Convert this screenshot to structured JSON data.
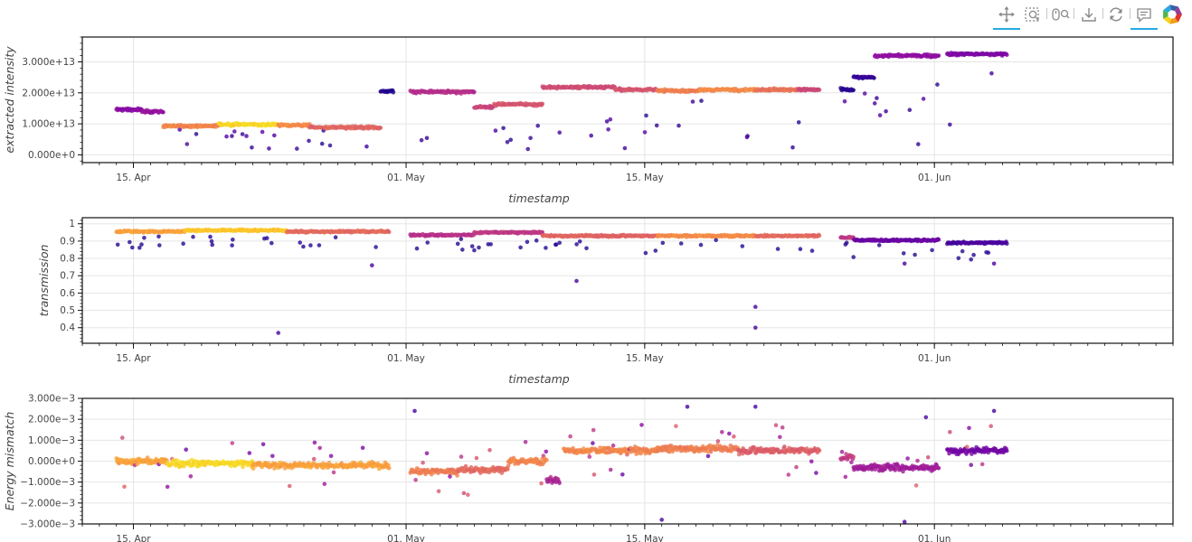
{
  "toolbar": {
    "tools": [
      {
        "name": "pan-tool-icon",
        "active": true
      },
      {
        "name": "box-zoom-tool-icon",
        "active": false
      },
      {
        "name": "wheel-zoom-tool-icon",
        "active": false
      },
      {
        "name": "save-tool-icon",
        "active": false
      },
      {
        "name": "reset-tool-icon",
        "active": false
      },
      {
        "name": "hover-tool-icon",
        "active": true
      },
      {
        "name": "bokeh-logo",
        "active": false
      }
    ]
  },
  "chart_data": [
    {
      "type": "scatter",
      "xlabel": "timestamp",
      "ylabel": "extracted intensity",
      "xlim": [
        "2023-04-12",
        "2023-06-15"
      ],
      "ylim": [
        -2500000000000.0,
        38000000000000.0
      ],
      "ytick_values": [
        0,
        10000000000000.0,
        20000000000000.0,
        30000000000000.0
      ],
      "ytick_labels": [
        "0.000e+0",
        "1.000e+13",
        "2.000e+13",
        "3.000e+13"
      ],
      "xtick_values": [
        "2023-04-15",
        "2023-05-01",
        "2023-05-15",
        "2023-06-01"
      ],
      "xtick_labels": [
        "15. Apr",
        "01. May",
        "15. May",
        "01. Jun"
      ],
      "grid": true,
      "colormap": "plasma",
      "segments": [
        {
          "start": "2023-04-14T00:00",
          "end": "2023-04-15T12:00",
          "value": 14600000000000.0,
          "color": 0.28
        },
        {
          "start": "2023-04-15T12:00",
          "end": "2023-04-16T18:00",
          "value": 14000000000000.0,
          "color": 0.32
        },
        {
          "start": "2023-04-16T18:00",
          "end": "2023-04-20T00:00",
          "value": 9300000000000.0,
          "color": 0.7
        },
        {
          "start": "2023-04-20T00:00",
          "end": "2023-04-23T12:00",
          "value": 9800000000000.0,
          "color": 0.92
        },
        {
          "start": "2023-04-23T12:00",
          "end": "2023-04-25T08:00",
          "value": 9600000000000.0,
          "color": 0.72
        },
        {
          "start": "2023-04-25T08:00",
          "end": "2023-04-29T12:00",
          "value": 8800000000000.0,
          "color": 0.6
        },
        {
          "start": "2023-04-29T12:00",
          "end": "2023-04-30T06:00",
          "value": 20500000000000.0,
          "color": 0.05
        },
        {
          "start": "2023-05-01T06:00",
          "end": "2023-05-05T00:00",
          "value": 20300000000000.0,
          "color": 0.42
        },
        {
          "start": "2023-05-05T00:00",
          "end": "2023-05-06T04:00",
          "value": 15500000000000.0,
          "color": 0.5
        },
        {
          "start": "2023-05-06T04:00",
          "end": "2023-05-09T00:00",
          "value": 16300000000000.0,
          "color": 0.55
        },
        {
          "start": "2023-05-09T00:00",
          "end": "2023-05-13T06:00",
          "value": 21800000000000.0,
          "color": 0.52
        },
        {
          "start": "2023-05-13T06:00",
          "end": "2023-05-15T18:00",
          "value": 21000000000000.0,
          "color": 0.55
        },
        {
          "start": "2023-05-15T18:00",
          "end": "2023-05-18T06:00",
          "value": 20700000000000.0,
          "color": 0.68
        },
        {
          "start": "2023-05-18T06:00",
          "end": "2023-05-21T12:00",
          "value": 21000000000000.0,
          "color": 0.72
        },
        {
          "start": "2023-05-21T12:00",
          "end": "2023-05-24T00:00",
          "value": 21000000000000.0,
          "color": 0.65
        },
        {
          "start": "2023-05-24T00:00",
          "end": "2023-05-25T06:00",
          "value": 21000000000000.0,
          "color": 0.5
        },
        {
          "start": "2023-05-26T12:00",
          "end": "2023-05-27T06:00",
          "value": 21000000000000.0,
          "color": 0.05
        },
        {
          "start": "2023-05-27T06:00",
          "end": "2023-05-28T12:00",
          "value": 25000000000000.0,
          "color": 0.08
        },
        {
          "start": "2023-05-28T12:00",
          "end": "2023-06-01T06:00",
          "value": 32000000000000.0,
          "color": 0.3
        },
        {
          "start": "2023-06-01T18:00",
          "end": "2023-06-05T06:00",
          "value": 32500000000000.0,
          "color": 0.25
        }
      ]
    },
    {
      "type": "scatter",
      "xlabel": "timestamp",
      "ylabel": "transmission",
      "xlim": [
        "2023-04-12",
        "2023-06-15"
      ],
      "ylim": [
        0.31,
        1.035
      ],
      "ytick_values": [
        0.4,
        0.5,
        0.6,
        0.7,
        0.8,
        0.9,
        1
      ],
      "ytick_labels": [
        "0.4",
        "0.5",
        "0.6",
        "0.7",
        "0.8",
        "0.9",
        "1"
      ],
      "xtick_values": [
        "2023-04-15",
        "2023-05-01",
        "2023-05-15",
        "2023-06-01"
      ],
      "xtick_labels": [
        "15. Apr",
        "01. May",
        "15. May",
        "01. Jun"
      ],
      "grid": true,
      "colormap": "plasma",
      "segments": [
        {
          "start": "2023-04-14T00:00",
          "end": "2023-04-18T00:00",
          "value": 0.955,
          "color": 0.78
        },
        {
          "start": "2023-04-18T00:00",
          "end": "2023-04-24T00:00",
          "value": 0.962,
          "color": 0.88
        },
        {
          "start": "2023-04-24T00:00",
          "end": "2023-04-30T00:00",
          "value": 0.955,
          "color": 0.62
        },
        {
          "start": "2023-05-01T06:00",
          "end": "2023-05-05T00:00",
          "value": 0.935,
          "color": 0.42
        },
        {
          "start": "2023-05-05T00:00",
          "end": "2023-05-09T00:00",
          "value": 0.95,
          "color": 0.45
        },
        {
          "start": "2023-05-09T00:00",
          "end": "2023-05-15T18:00",
          "value": 0.93,
          "color": 0.6
        },
        {
          "start": "2023-05-15T18:00",
          "end": "2023-05-21T12:00",
          "value": 0.93,
          "color": 0.72
        },
        {
          "start": "2023-05-21T12:00",
          "end": "2023-05-25T06:00",
          "value": 0.93,
          "color": 0.62
        },
        {
          "start": "2023-05-26T12:00",
          "end": "2023-05-27T06:00",
          "value": 0.92,
          "color": 0.45
        },
        {
          "start": "2023-05-27T06:00",
          "end": "2023-06-01T06:00",
          "value": 0.905,
          "color": 0.2
        },
        {
          "start": "2023-06-01T18:00",
          "end": "2023-06-05T06:00",
          "value": 0.89,
          "color": 0.12
        }
      ],
      "outliers": [
        [
          "2023-04-23T12:00",
          0.37
        ],
        [
          "2023-05-21T12:00",
          0.52
        ],
        [
          "2023-05-21T12:00",
          0.4
        ],
        [
          "2023-05-11T00:00",
          0.67
        ],
        [
          "2023-04-29T00:00",
          0.76
        ],
        [
          "2023-05-30T06:00",
          0.77
        ],
        [
          "2023-06-04T12:00",
          0.77
        ]
      ]
    },
    {
      "type": "scatter",
      "xlabel": "",
      "ylabel": "Energy mismatch",
      "xlim": [
        "2023-04-12",
        "2023-06-15"
      ],
      "ylim": [
        -0.003,
        0.003
      ],
      "ytick_values": [
        -0.003,
        -0.002,
        -0.001,
        0,
        0.001,
        0.002,
        0.003
      ],
      "ytick_labels": [
        "−3.000e−3",
        "−2.000e−3",
        "−1.000e−3",
        "0.000e+0",
        "1.000e−3",
        "2.000e−3",
        "3.000e−3"
      ],
      "xtick_values": [
        "2023-04-15",
        "2023-05-01",
        "2023-05-15",
        "2023-06-01"
      ],
      "xtick_labels": [
        "15. Apr",
        "01. May",
        "15. May",
        "01. Jun"
      ],
      "grid": true,
      "colormap": "plasma",
      "segments": [
        {
          "start": "2023-04-14T00:00",
          "end": "2023-04-17T00:00",
          "value": 0.0,
          "color": 0.78
        },
        {
          "start": "2023-04-17T00:00",
          "end": "2023-04-22T00:00",
          "value": -0.0001,
          "color": 0.92
        },
        {
          "start": "2023-04-22T00:00",
          "end": "2023-04-30T00:00",
          "value": -0.0002,
          "color": 0.78
        },
        {
          "start": "2023-05-01T06:00",
          "end": "2023-05-04T00:00",
          "value": -0.0005,
          "color": 0.68
        },
        {
          "start": "2023-05-04T00:00",
          "end": "2023-05-07T00:00",
          "value": -0.0004,
          "color": 0.62
        },
        {
          "start": "2023-05-07T00:00",
          "end": "2023-05-09T06:00",
          "value": 0.0,
          "color": 0.7
        },
        {
          "start": "2023-05-09T06:00",
          "end": "2023-05-10T00:00",
          "value": -0.0009,
          "color": 0.38
        },
        {
          "start": "2023-05-10T06:00",
          "end": "2023-05-15T18:00",
          "value": 0.0005,
          "color": 0.7
        },
        {
          "start": "2023-05-15T18:00",
          "end": "2023-05-20T12:00",
          "value": 0.0006,
          "color": 0.68
        },
        {
          "start": "2023-05-20T12:00",
          "end": "2023-05-25T06:00",
          "value": 0.0005,
          "color": 0.58
        },
        {
          "start": "2023-05-26T12:00",
          "end": "2023-05-27T06:00",
          "value": 0.0002,
          "color": 0.45
        },
        {
          "start": "2023-05-27T06:00",
          "end": "2023-06-01T06:00",
          "value": -0.0003,
          "color": 0.35
        },
        {
          "start": "2023-06-01T18:00",
          "end": "2023-06-05T06:00",
          "value": 0.0005,
          "color": 0.22
        }
      ],
      "outliers": [
        [
          "2023-05-01T12:00",
          0.0024
        ],
        [
          "2023-05-17T12:00",
          0.0026
        ],
        [
          "2023-05-21T12:00",
          0.0026
        ],
        [
          "2023-05-31T12:00",
          0.0021
        ],
        [
          "2023-05-16T00:00",
          -0.0028
        ],
        [
          "2023-05-30T06:00",
          -0.0029
        ],
        [
          "2023-06-04T12:00",
          0.0024
        ]
      ]
    }
  ]
}
